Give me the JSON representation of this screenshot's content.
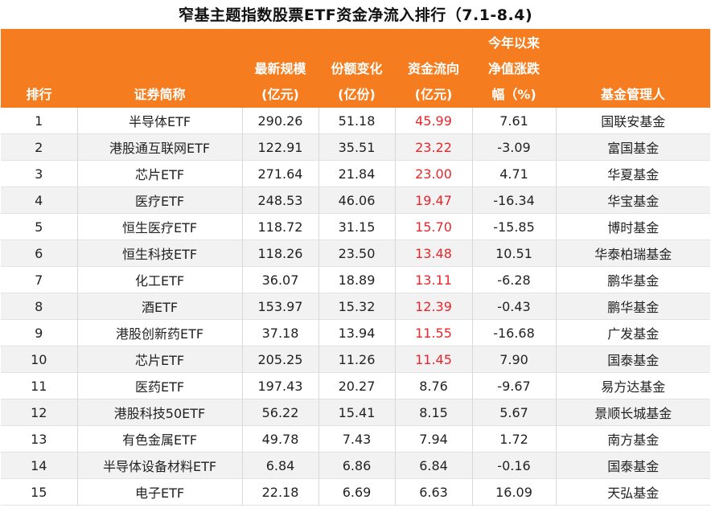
{
  "title": "窄基主题指数股票ETF资金净流入排行（7.1-8.4)",
  "headers": [
    "排行",
    "证券简称",
    "最新规模\n(亿元)",
    "份额变化\n(亿份)",
    "资金流向\n(亿元)",
    "今年以来\n净值涨跌\n幅（%)",
    "基金管理人"
  ],
  "rows": [
    {
      "rank": "1",
      "name": "半导体ETF",
      "scale": "290.26",
      "share_change": "51.18",
      "flow": "45.99",
      "ytd": "7.61",
      "manager": "国联安基金",
      "flow_red": true
    },
    {
      "rank": "2",
      "name": "港股通互联网ETF",
      "scale": "122.91",
      "share_change": "35.51",
      "flow": "23.22",
      "ytd": "-3.09",
      "manager": "富国基金",
      "flow_red": true
    },
    {
      "rank": "3",
      "name": "芯片ETF",
      "scale": "271.64",
      "share_change": "21.84",
      "flow": "23.00",
      "ytd": "4.71",
      "manager": "华夏基金",
      "flow_red": true
    },
    {
      "rank": "4",
      "name": "医疗ETF",
      "scale": "248.53",
      "share_change": "46.06",
      "flow": "19.47",
      "ytd": "-16.34",
      "manager": "华宝基金",
      "flow_red": true
    },
    {
      "rank": "5",
      "name": "恒生医疗ETF",
      "scale": "118.72",
      "share_change": "31.15",
      "flow": "15.70",
      "ytd": "-15.85",
      "manager": "博时基金",
      "flow_red": true
    },
    {
      "rank": "6",
      "name": "恒生科技ETF",
      "scale": "118.26",
      "share_change": "23.50",
      "flow": "13.48",
      "ytd": "10.51",
      "manager": "华泰柏瑞基金",
      "flow_red": true
    },
    {
      "rank": "7",
      "name": "化工ETF",
      "scale": "36.07",
      "share_change": "18.89",
      "flow": "13.11",
      "ytd": "-6.28",
      "manager": "鹏华基金",
      "flow_red": true
    },
    {
      "rank": "8",
      "name": "酒ETF",
      "scale": "153.97",
      "share_change": "15.32",
      "flow": "12.39",
      "ytd": "-0.43",
      "manager": "鹏华基金",
      "flow_red": true
    },
    {
      "rank": "9",
      "name": "港股创新药ETF",
      "scale": "37.18",
      "share_change": "13.94",
      "flow": "11.55",
      "ytd": "-16.68",
      "manager": "广发基金",
      "flow_red": true
    },
    {
      "rank": "10",
      "name": "芯片ETF",
      "scale": "205.25",
      "share_change": "11.26",
      "flow": "11.45",
      "ytd": "7.90",
      "manager": "国泰基金",
      "flow_red": true
    },
    {
      "rank": "11",
      "name": "医药ETF",
      "scale": "197.43",
      "share_change": "20.27",
      "flow": "8.76",
      "ytd": "-9.67",
      "manager": "易方达基金",
      "flow_red": false
    },
    {
      "rank": "12",
      "name": "港股科技50ETF",
      "scale": "56.22",
      "share_change": "15.41",
      "flow": "8.15",
      "ytd": "5.67",
      "manager": "景顺长城基金",
      "flow_red": false
    },
    {
      "rank": "13",
      "name": "有色金属ETF",
      "scale": "49.78",
      "share_change": "7.43",
      "flow": "7.94",
      "ytd": "1.72",
      "manager": "南方基金",
      "flow_red": false
    },
    {
      "rank": "14",
      "name": "半导体设备材料ETF",
      "scale": "6.84",
      "share_change": "6.86",
      "flow": "6.84",
      "ytd": "-0.16",
      "manager": "国泰基金",
      "flow_red": false
    },
    {
      "rank": "15",
      "name": "电子ETF",
      "scale": "22.18",
      "share_change": "6.69",
      "flow": "6.63",
      "ytd": "16.09",
      "manager": "天弘基金",
      "flow_red": false
    }
  ],
  "colors": {
    "header_bg": "#f57d1f",
    "header_text": "#ffffff",
    "inflow_red": "#e8262b",
    "zebra": "#f2f2f2"
  }
}
